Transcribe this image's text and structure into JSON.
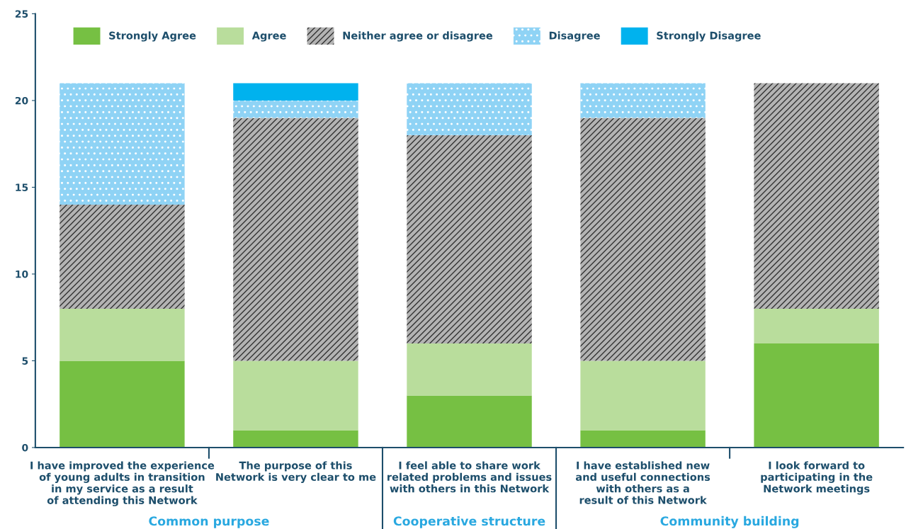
{
  "chart_data": {
    "type": "bar",
    "stacked": true,
    "categories": [
      "I have improved the experience\nof young adults in transition\nin my service as a result\nof attending this Network",
      "The purpose of this\nNetwork is very clear to me",
      "I feel able to share work\nrelated problems and issues\nwith others in this Network",
      "I have established new\nand useful connections\nwith others as a\nresult of this Network",
      "I look forward to\nparticipating in the\nNetwork meetings"
    ],
    "series": [
      {
        "name": "Strongly Agree",
        "color": "#76c043",
        "values": [
          5,
          1,
          3,
          1,
          6
        ]
      },
      {
        "name": "Agree",
        "color": "#b9dd9c",
        "values": [
          3,
          4,
          3,
          4,
          2
        ]
      },
      {
        "name": "Neither agree or disagree",
        "color": "#b3b3b3",
        "values": [
          6,
          14,
          12,
          14,
          13
        ]
      },
      {
        "name": "Disagree",
        "color": "#8fd3f5",
        "values": [
          7,
          1,
          3,
          2,
          0
        ]
      },
      {
        "name": "Strongly Disagree",
        "color": "#00b2ee",
        "values": [
          0,
          1,
          0,
          0,
          0
        ]
      }
    ],
    "ylim": [
      0,
      25
    ],
    "yticks": [
      0,
      5,
      10,
      15,
      20,
      25
    ],
    "grid": false,
    "legend": "top",
    "annotations": [
      "Common purpose",
      "Cooperative structure",
      "Community building"
    ]
  }
}
